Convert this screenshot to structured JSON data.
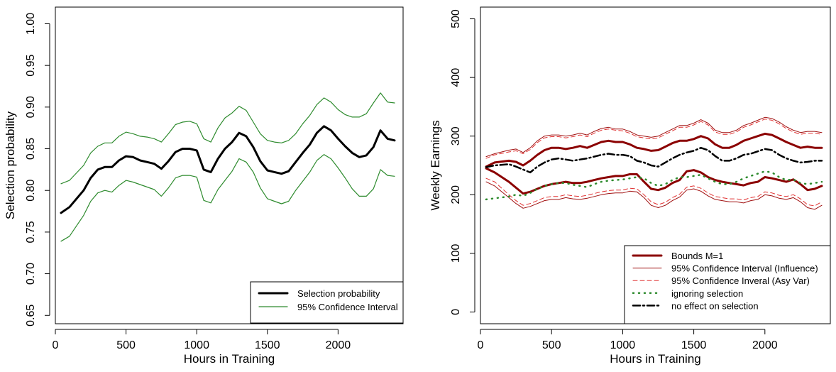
{
  "chart_data": [
    {
      "type": "line",
      "xlabel": "Hours in Training",
      "ylabel": "Selection probability",
      "xlim": [
        0,
        2460
      ],
      "ylim": [
        0.64,
        1.02
      ],
      "xticks": [
        0,
        500,
        1000,
        1500,
        2000
      ],
      "yticks": [
        0.65,
        0.7,
        0.75,
        0.8,
        0.85,
        0.9,
        0.95,
        1.0
      ],
      "ytick_labels": [
        "0.65",
        "0.70",
        "0.75",
        "0.80",
        "0.85",
        "0.90",
        "0.95",
        "1.00"
      ],
      "legend_position": "bottom-right",
      "x": [
        40,
        100,
        200,
        250,
        300,
        350,
        400,
        450,
        500,
        550,
        600,
        650,
        700,
        750,
        800,
        850,
        900,
        950,
        1000,
        1050,
        1100,
        1150,
        1200,
        1250,
        1300,
        1350,
        1400,
        1450,
        1500,
        1550,
        1600,
        1650,
        1700,
        1750,
        1800,
        1850,
        1900,
        1950,
        2000,
        2050,
        2100,
        2150,
        2200,
        2250,
        2300,
        2350,
        2400
      ],
      "series": [
        {
          "name": "Selection probability",
          "color": "#000000",
          "width": 3,
          "dash": "",
          "values": [
            0.773,
            0.78,
            0.8,
            0.815,
            0.825,
            0.828,
            0.828,
            0.836,
            0.841,
            0.84,
            0.836,
            0.834,
            0.832,
            0.826,
            0.835,
            0.846,
            0.85,
            0.85,
            0.848,
            0.825,
            0.822,
            0.838,
            0.85,
            0.858,
            0.869,
            0.865,
            0.852,
            0.835,
            0.824,
            0.822,
            0.82,
            0.823,
            0.834,
            0.845,
            0.855,
            0.869,
            0.877,
            0.872,
            0.862,
            0.853,
            0.845,
            0.84,
            0.842,
            0.852,
            0.872,
            0.862,
            0.86
          ]
        },
        {
          "name": "95% Confidence Interval",
          "color": "#2e8b2e",
          "width": 1.2,
          "dash": "",
          "values": [
            0.808,
            0.812,
            0.83,
            0.845,
            0.853,
            0.857,
            0.857,
            0.865,
            0.87,
            0.868,
            0.865,
            0.864,
            0.862,
            0.858,
            0.868,
            0.879,
            0.882,
            0.883,
            0.88,
            0.862,
            0.858,
            0.875,
            0.887,
            0.893,
            0.901,
            0.896,
            0.882,
            0.868,
            0.86,
            0.858,
            0.857,
            0.86,
            0.868,
            0.88,
            0.89,
            0.903,
            0.911,
            0.906,
            0.897,
            0.891,
            0.888,
            0.888,
            0.892,
            0.905,
            0.917,
            0.906,
            0.905
          ]
        },
        {
          "name": "",
          "color": "#2e8b2e",
          "width": 1.2,
          "dash": "",
          "values": [
            0.739,
            0.745,
            0.77,
            0.787,
            0.797,
            0.8,
            0.798,
            0.806,
            0.812,
            0.81,
            0.807,
            0.804,
            0.801,
            0.793,
            0.803,
            0.815,
            0.818,
            0.818,
            0.816,
            0.788,
            0.785,
            0.801,
            0.812,
            0.823,
            0.838,
            0.834,
            0.822,
            0.803,
            0.79,
            0.787,
            0.784,
            0.787,
            0.8,
            0.811,
            0.822,
            0.836,
            0.843,
            0.838,
            0.827,
            0.815,
            0.802,
            0.793,
            0.793,
            0.802,
            0.825,
            0.818,
            0.817
          ]
        }
      ],
      "legend": [
        {
          "label": "Selection probability",
          "color": "#000000",
          "width": 3,
          "dash": ""
        },
        {
          "label": "95% Confidence Interval",
          "color": "#2e8b2e",
          "width": 1.2,
          "dash": ""
        }
      ]
    },
    {
      "type": "line",
      "xlabel": "Hours in Training",
      "ylabel": "Weekly Earnings",
      "xlim": [
        0,
        2460
      ],
      "ylim": [
        -20,
        520
      ],
      "xticks": [
        0,
        500,
        1000,
        1500,
        2000
      ],
      "yticks": [
        0,
        100,
        200,
        300,
        400,
        500
      ],
      "ytick_labels": [
        "0",
        "100",
        "200",
        "300",
        "400",
        "500"
      ],
      "legend_position": "bottom-right",
      "x": [
        40,
        100,
        200,
        250,
        300,
        350,
        400,
        450,
        500,
        550,
        600,
        650,
        700,
        750,
        800,
        850,
        900,
        950,
        1000,
        1050,
        1100,
        1150,
        1200,
        1250,
        1300,
        1350,
        1400,
        1450,
        1500,
        1550,
        1600,
        1650,
        1700,
        1750,
        1800,
        1850,
        1900,
        1950,
        2000,
        2050,
        2100,
        2150,
        2200,
        2250,
        2300,
        2350,
        2400
      ],
      "series": [
        {
          "name": "Bounds M=1",
          "color": "#8b0000",
          "width": 3,
          "dash": "",
          "values": [
            248,
            255,
            258,
            256,
            250,
            258,
            268,
            276,
            280,
            280,
            278,
            280,
            283,
            280,
            285,
            290,
            292,
            290,
            290,
            286,
            280,
            278,
            275,
            276,
            282,
            288,
            292,
            292,
            295,
            300,
            296,
            286,
            280,
            280,
            285,
            292,
            296,
            300,
            304,
            302,
            296,
            290,
            285,
            280,
            282,
            280,
            280
          ]
        },
        {
          "name": "",
          "color": "#8b0000",
          "width": 3,
          "dash": "",
          "values": [
            245,
            238,
            222,
            212,
            202,
            205,
            210,
            215,
            218,
            220,
            222,
            220,
            220,
            222,
            225,
            228,
            230,
            232,
            232,
            235,
            235,
            222,
            210,
            208,
            212,
            220,
            225,
            240,
            242,
            238,
            230,
            225,
            222,
            220,
            218,
            216,
            220,
            222,
            230,
            228,
            225,
            222,
            226,
            218,
            208,
            210,
            215
          ]
        },
        {
          "name": "95% Confidence Interval (Influence)",
          "color": "#a01010",
          "width": 1,
          "dash": "",
          "values": [
            265,
            270,
            276,
            278,
            272,
            280,
            292,
            300,
            302,
            302,
            300,
            302,
            305,
            302,
            308,
            313,
            315,
            312,
            312,
            308,
            302,
            300,
            298,
            300,
            306,
            312,
            318,
            318,
            322,
            328,
            322,
            310,
            306,
            306,
            310,
            318,
            322,
            327,
            332,
            330,
            324,
            316,
            310,
            306,
            308,
            308,
            306
          ]
        },
        {
          "name": "",
          "color": "#a01010",
          "width": 1,
          "dash": "",
          "values": [
            222,
            215,
            195,
            185,
            177,
            180,
            185,
            190,
            192,
            192,
            195,
            193,
            192,
            194,
            197,
            200,
            202,
            203,
            203,
            206,
            205,
            195,
            182,
            178,
            182,
            190,
            196,
            208,
            210,
            206,
            198,
            192,
            190,
            188,
            188,
            186,
            190,
            192,
            200,
            198,
            194,
            192,
            195,
            188,
            178,
            175,
            182
          ]
        },
        {
          "name": "95% Confidence Inveral (Asy Var)",
          "color": "#e03030",
          "width": 1,
          "dash": "6,4",
          "values": [
            262,
            268,
            273,
            275,
            270,
            277,
            289,
            297,
            299,
            299,
            297,
            299,
            302,
            299,
            305,
            310,
            312,
            310,
            309,
            305,
            299,
            297,
            295,
            297,
            303,
            309,
            315,
            315,
            319,
            325,
            319,
            307,
            303,
            303,
            307,
            315,
            319,
            324,
            329,
            327,
            321,
            313,
            307,
            303,
            305,
            305,
            303
          ]
        },
        {
          "name": "",
          "color": "#e03030",
          "width": 1,
          "dash": "6,4",
          "values": [
            228,
            222,
            200,
            190,
            182,
            185,
            190,
            195,
            197,
            197,
            200,
            198,
            197,
            199,
            202,
            205,
            207,
            208,
            208,
            211,
            210,
            200,
            188,
            183,
            187,
            195,
            201,
            213,
            215,
            211,
            203,
            197,
            195,
            193,
            193,
            191,
            195,
            197,
            205,
            203,
            199,
            197,
            200,
            193,
            183,
            181,
            188
          ]
        },
        {
          "name": "ignoring selection",
          "color": "#2e8b2e",
          "width": 2.5,
          "dash": "1,7",
          "values": [
            192,
            194,
            197,
            200,
            198,
            203,
            210,
            215,
            218,
            220,
            220,
            217,
            215,
            213,
            218,
            222,
            224,
            225,
            226,
            228,
            230,
            228,
            220,
            215,
            218,
            225,
            230,
            230,
            232,
            234,
            228,
            222,
            218,
            218,
            222,
            228,
            232,
            236,
            240,
            238,
            230,
            225,
            226,
            220,
            218,
            220,
            222
          ]
        },
        {
          "name": "no effect on selection",
          "color": "#000000",
          "width": 2.5,
          "dash": "10,4,2,4",
          "values": [
            247,
            250,
            252,
            248,
            243,
            238,
            248,
            255,
            260,
            262,
            260,
            258,
            260,
            262,
            265,
            268,
            270,
            268,
            268,
            266,
            258,
            255,
            250,
            248,
            255,
            262,
            268,
            272,
            275,
            280,
            276,
            266,
            258,
            258,
            262,
            268,
            270,
            274,
            278,
            276,
            268,
            262,
            258,
            255,
            256,
            258,
            258
          ]
        }
      ],
      "legend": [
        {
          "label": "Bounds M=1",
          "color": "#8b0000",
          "width": 3,
          "dash": ""
        },
        {
          "label": "95% Confidence Interval (Influence)",
          "color": "#a01010",
          "width": 1,
          "dash": ""
        },
        {
          "label": "95% Confidence Inveral (Asy Var)",
          "color": "#e03030",
          "width": 1,
          "dash": "6,4"
        },
        {
          "label": "ignoring selection",
          "color": "#2e8b2e",
          "width": 2.5,
          "dash": "1,7"
        },
        {
          "label": "no effect on selection",
          "color": "#000000",
          "width": 2.5,
          "dash": "10,4,2,4"
        }
      ]
    }
  ]
}
